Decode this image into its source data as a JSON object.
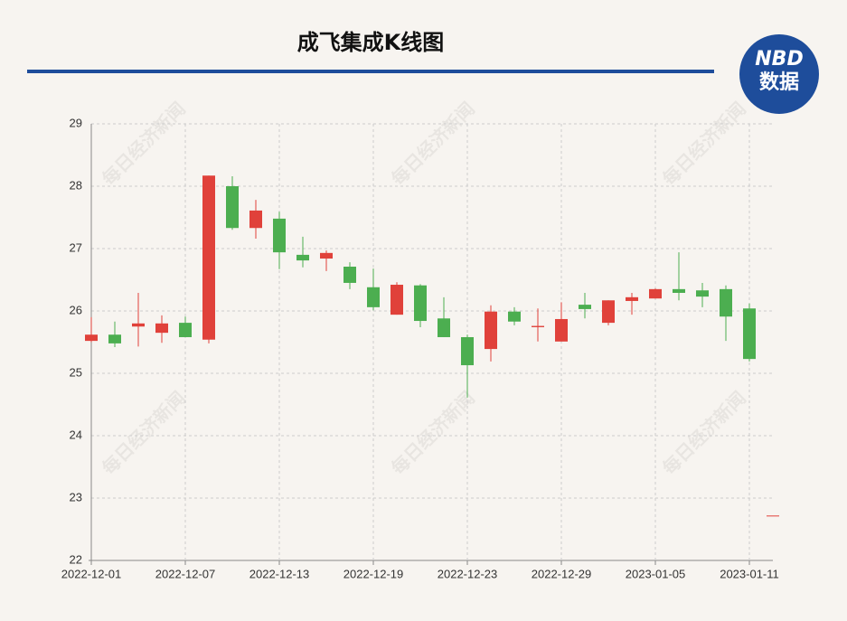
{
  "chart_data": {
    "type": "candlestick",
    "title": "成飞集成K线图",
    "logo_top": "NBD",
    "logo_bottom": "数据",
    "watermark": "每日经济新闻",
    "categories": [
      "2022-12-01",
      null,
      null,
      null,
      "2022-12-07",
      null,
      null,
      null,
      "2022-12-13",
      null,
      null,
      null,
      "2022-12-19",
      null,
      null,
      null,
      "2022-12-23",
      null,
      null,
      null,
      "2022-12-29",
      null,
      null,
      null,
      "2023-01-05",
      null,
      null,
      null,
      "2023-01-11",
      null
    ],
    "open": [
      25.52,
      25.62,
      25.75,
      25.65,
      25.81,
      25.54,
      28.0,
      27.33,
      27.48,
      26.9,
      26.84,
      26.71,
      26.38,
      25.94,
      26.41,
      25.88,
      25.58,
      25.39,
      25.99,
      25.74,
      25.51,
      26.1,
      25.81,
      26.16,
      26.2,
      26.35,
      26.33,
      26.35,
      26.04,
      22.72
    ],
    "high": [
      25.9,
      25.83,
      26.29,
      25.93,
      25.91,
      28.17,
      28.16,
      27.78,
      27.59,
      27.19,
      26.97,
      26.78,
      26.68,
      26.46,
      26.43,
      26.22,
      25.62,
      26.09,
      26.06,
      26.04,
      26.14,
      26.29,
      26.17,
      26.29,
      26.36,
      26.94,
      26.45,
      26.41,
      26.12,
      22.72
    ],
    "low": [
      25.5,
      25.42,
      25.43,
      25.49,
      25.58,
      25.48,
      27.3,
      27.16,
      26.67,
      26.7,
      26.64,
      26.35,
      26.01,
      25.94,
      25.74,
      25.58,
      24.61,
      25.19,
      25.77,
      25.51,
      25.51,
      25.88,
      25.77,
      25.94,
      26.2,
      26.17,
      26.06,
      25.52,
      25.19,
      22.72
    ],
    "close": [
      25.62,
      25.48,
      25.8,
      25.8,
      25.58,
      28.17,
      27.33,
      27.61,
      26.94,
      26.81,
      26.93,
      26.45,
      26.06,
      26.42,
      25.84,
      25.58,
      25.13,
      25.99,
      25.83,
      25.76,
      25.87,
      26.03,
      26.17,
      26.22,
      26.35,
      26.29,
      26.23,
      25.91,
      25.23,
      22.72
    ],
    "up_color": "#e0413a",
    "down_color": "#4cae50",
    "ylim": [
      22,
      29
    ],
    "yticks": [
      22,
      23,
      24,
      25,
      26,
      27,
      28,
      29
    ],
    "grid": true
  }
}
